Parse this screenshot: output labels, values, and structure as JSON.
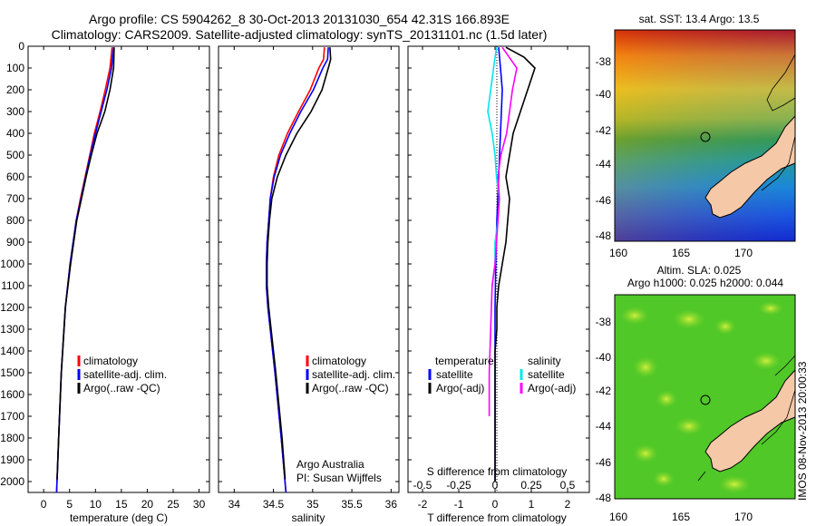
{
  "header": {
    "line1": "Argo profile: CS 5904262_8 30-Oct-2013 20131030_654 42.31S 166.893E",
    "line2": "Climatology: CARS2009. Satellite-adjusted climatology: synTS_20131101.nc (1.5d later)"
  },
  "colors": {
    "climatology": "#ff0000",
    "satellite_adj": "#0000ff",
    "argo": "#000000",
    "salinity_satellite": "#00e5ee",
    "salinity_argo": "#ff00ff"
  },
  "chart_data": [
    {
      "type": "line",
      "xlabel": "temperature (deg C)",
      "ylabel": "",
      "xlim": [
        -3,
        32
      ],
      "ylim": [
        2050,
        0
      ],
      "xticks": [
        0,
        5,
        10,
        15,
        20,
        25,
        30
      ],
      "yticks": [
        0,
        100,
        200,
        300,
        400,
        500,
        600,
        700,
        800,
        900,
        1000,
        1100,
        1200,
        1300,
        1400,
        1500,
        1600,
        1700,
        1800,
        1900,
        2000
      ],
      "legend": {
        "position": "lower-center",
        "entries": [
          "climatology",
          "satellite-adj. clim.",
          "Argo(..raw -QC)"
        ]
      },
      "series": [
        {
          "name": "climatology",
          "depth": [
            5,
            100,
            200,
            300,
            400,
            500,
            600,
            700,
            800,
            1000,
            1200,
            1500,
            1800,
            2050
          ],
          "values": [
            13.2,
            12.8,
            11.9,
            10.9,
            9.8,
            8.9,
            8.0,
            7.1,
            6.3,
            5.1,
            4.2,
            3.4,
            2.9,
            2.5
          ]
        },
        {
          "name": "satellite-adj. clim.",
          "depth": [
            5,
            100,
            200,
            300,
            400,
            500,
            600,
            700,
            800,
            1000,
            1200,
            1500,
            1800,
            2050
          ],
          "values": [
            13.5,
            13.1,
            12.2,
            11.1,
            10.0,
            9.0,
            8.1,
            7.2,
            6.3,
            5.1,
            4.2,
            3.4,
            2.9,
            2.5
          ]
        },
        {
          "name": "Argo(..raw -QC)",
          "depth": [
            5,
            100,
            200,
            300,
            400,
            500,
            600,
            700,
            800,
            1000,
            1200,
            1500,
            1800,
            1990
          ],
          "values": [
            13.6,
            13.5,
            12.8,
            11.8,
            10.3,
            9.2,
            8.2,
            7.3,
            6.4,
            5.2,
            4.2,
            3.4,
            2.9,
            2.6
          ]
        }
      ]
    },
    {
      "type": "line",
      "xlabel": "salinity",
      "ylabel": "",
      "xlim": [
        33.8,
        36.1
      ],
      "ylim": [
        2050,
        0
      ],
      "xticks": [
        34,
        34.5,
        35,
        35.5,
        36
      ],
      "annotation": [
        "Argo Australia",
        "PI: Susan Wijffels"
      ],
      "legend": {
        "position": "lower-right",
        "entries": [
          "climatology",
          "satellite-adj. clim.",
          "Argo(..raw -QC)"
        ]
      },
      "series": [
        {
          "name": "climatology",
          "depth": [
            5,
            60,
            100,
            200,
            300,
            400,
            500,
            600,
            700,
            800,
            900,
            1000,
            1100,
            1200,
            1300,
            1500,
            1800,
            2050
          ],
          "values": [
            35.15,
            35.14,
            35.08,
            34.97,
            34.82,
            34.68,
            34.57,
            34.5,
            34.46,
            34.44,
            34.42,
            34.41,
            34.41,
            34.43,
            34.46,
            34.52,
            34.6,
            34.66
          ]
        },
        {
          "name": "satellite-adj. clim.",
          "depth": [
            5,
            60,
            100,
            200,
            300,
            400,
            500,
            600,
            700,
            800,
            900,
            1000,
            1100,
            1200,
            1300,
            1500,
            1800,
            2050
          ],
          "values": [
            35.2,
            35.19,
            35.13,
            35.01,
            34.85,
            34.71,
            34.59,
            34.51,
            34.46,
            34.44,
            34.42,
            34.41,
            34.41,
            34.43,
            34.46,
            34.52,
            34.6,
            34.66
          ]
        },
        {
          "name": "Argo(..raw -QC)",
          "depth": [
            5,
            60,
            100,
            200,
            300,
            400,
            500,
            600,
            700,
            800,
            900,
            1000,
            1100,
            1200,
            1300,
            1500,
            1800,
            1990
          ],
          "values": [
            35.22,
            35.23,
            35.2,
            35.12,
            34.98,
            34.8,
            34.66,
            34.55,
            34.48,
            34.45,
            34.43,
            34.42,
            34.42,
            34.44,
            34.47,
            34.53,
            34.61,
            34.65
          ]
        }
      ]
    },
    {
      "type": "line",
      "title": "S difference from climatology",
      "xlabel": "T difference from climatology",
      "ylabel": "",
      "xlim": [
        -2.4,
        2.6
      ],
      "ylim": [
        2050,
        0
      ],
      "xticks": [
        -2,
        -1,
        0,
        1,
        2
      ],
      "xticks_secondary": [
        "-0.5",
        "-0.25",
        "0",
        "0.25",
        "0.5"
      ],
      "legend_temperature": {
        "heading": "temperature",
        "entries": [
          "satellite",
          "Argo(-adj)"
        ]
      },
      "legend_salinity": {
        "heading": "salinity",
        "entries": [
          "satellite",
          "Argo(-adj)"
        ]
      },
      "series": [
        {
          "name": "temperature satellite",
          "depth": [
            5,
            100,
            200,
            400,
            600,
            800,
            1000,
            1200,
            1500,
            2000
          ],
          "values": [
            0.1,
            0.15,
            0.2,
            0.15,
            0.1,
            0.05,
            0.02,
            0.0,
            0.0,
            0.0
          ]
        },
        {
          "name": "temperature Argo(-adj)",
          "depth": [
            5,
            50,
            100,
            150,
            200,
            250,
            300,
            400,
            500,
            600,
            700,
            800,
            900,
            1000,
            1100,
            1200,
            1300,
            1400,
            1500,
            1700,
            1900,
            2000
          ],
          "values": [
            0.3,
            0.8,
            1.1,
            1.0,
            0.9,
            0.8,
            0.7,
            0.5,
            0.4,
            0.3,
            0.4,
            0.35,
            0.3,
            0.2,
            0.1,
            0.05,
            0.05,
            0.0,
            0.0,
            0.0,
            0.0,
            0.0
          ]
        },
        {
          "name": "salinity satellite",
          "depth": [
            5,
            100,
            200,
            300,
            400,
            500,
            600,
            700,
            800,
            900,
            1000,
            1100
          ],
          "values": [
            0.01,
            -0.01,
            -0.03,
            -0.05,
            -0.02,
            0.0,
            0.01,
            0.03,
            0.02,
            0.0,
            0.0,
            -0.02
          ]
        },
        {
          "name": "salinity Argo(-adj)",
          "depth": [
            5,
            100,
            200,
            300,
            400,
            500,
            600,
            700,
            800,
            900,
            1000,
            1100,
            1300,
            1500,
            1700
          ],
          "values": [
            0.05,
            0.15,
            0.12,
            0.1,
            0.08,
            0.04,
            0.02,
            0.03,
            0.02,
            0.01,
            0.0,
            -0.02,
            -0.03,
            -0.04,
            -0.04
          ]
        }
      ]
    }
  ],
  "maps": {
    "sst": {
      "title": "sat. SST: 13.4 Argo: 13.5",
      "lon_ticks": [
        "160",
        "165",
        "170"
      ],
      "lat_ticks": [
        "-38",
        "-40",
        "-42",
        "-44",
        "-46",
        "-48"
      ]
    },
    "sla": {
      "title_line1": "Altim. SLA: 0.025",
      "title_line2": "Argo h1000: 0.025 h2000: 0.044",
      "lon_ticks": [
        "160",
        "165",
        "170"
      ],
      "lat_ticks": [
        "-38",
        "-40",
        "-42",
        "-44",
        "-46",
        "-48"
      ]
    }
  },
  "footer_stamp": "IMOS 08-Nov-2013 20:00:33"
}
